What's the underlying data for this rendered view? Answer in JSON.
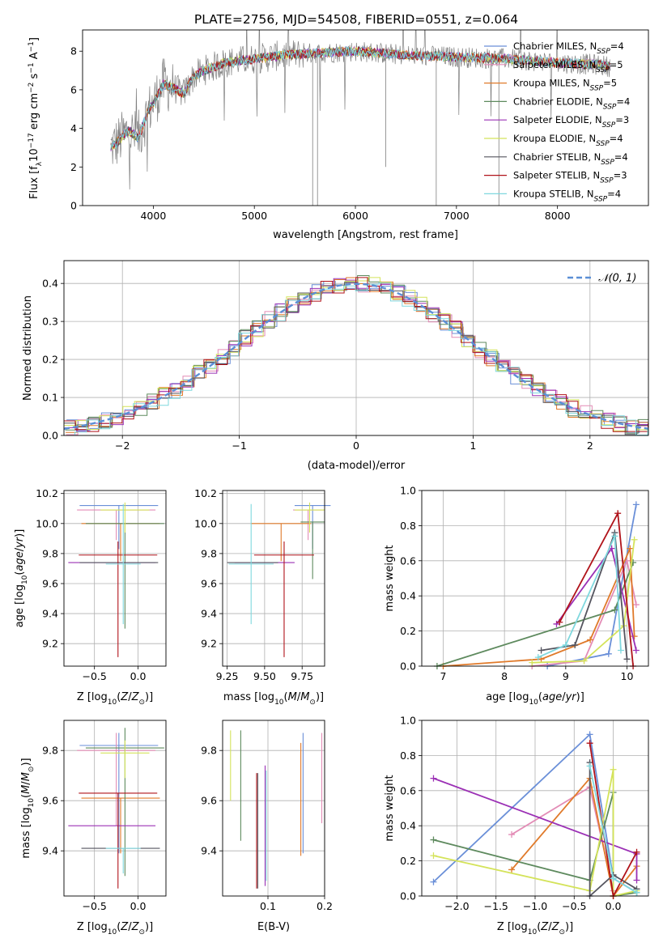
{
  "figure": {
    "title": "PLATE=2756, MJD=54508, FIBERID=0551, z=0.064"
  },
  "colors": {
    "Chabrier MILES": "#6a8fd8",
    "Salpeter MILES": "#e38cb6",
    "Kroupa MILES": "#e07a2a",
    "Chabrier ELODIE": "#5e8a5e",
    "Salpeter ELODIE": "#9b30b5",
    "Kroupa ELODIE": "#d4e35a",
    "Chabrier STELIB": "#55555f",
    "Salpeter STELIB": "#b0131a",
    "Kroupa STELIB": "#7fd8de",
    "data": "#808080",
    "normal": "#5b8fd6"
  },
  "chart_data": [
    {
      "type": "line",
      "title": "PLATE=2756, MJD=54508, FIBERID=0551, z=0.064",
      "xlabel": "wavelength [Angstrom, rest frame]",
      "ylabel": "Flux [fλ10⁻¹⁷ erg cm⁻² s⁻¹ A⁻¹]",
      "xlim": [
        3300,
        8900
      ],
      "ylim": [
        0,
        9.1
      ],
      "xticks": [
        4000,
        5000,
        6000,
        7000,
        8000
      ],
      "yticks": [
        0,
        2,
        4,
        6,
        8
      ],
      "legend_position": "top-right",
      "legend": [
        "Chabrier MILES, N_SSP=4",
        "Salpeter MILES, N_SSP=5",
        "Kroupa MILES, N_SSP=5",
        "Chabrier ELODIE, N_SSP=4",
        "Salpeter ELODIE, N_SSP=3",
        "Kroupa ELODIE, N_SSP=4",
        "Chabrier STELIB, N_SSP=4",
        "Salpeter STELIB, N_SSP=3",
        "Kroupa STELIB, N_SSP=4"
      ],
      "model_continuum": {
        "x": [
          3580,
          3650,
          3750,
          3850,
          3950,
          4000,
          4100,
          4200,
          4300,
          4400,
          4500,
          4700,
          5000,
          5300,
          5600,
          6000,
          6500,
          7000,
          7500,
          8000,
          8400,
          8520
        ],
        "y": [
          3.0,
          3.3,
          3.9,
          3.5,
          4.9,
          5.3,
          6.3,
          6.1,
          5.8,
          6.7,
          7.0,
          7.4,
          7.6,
          7.8,
          7.9,
          8.0,
          7.8,
          7.7,
          7.6,
          7.4,
          7.3,
          7.2
        ]
      }
    },
    {
      "type": "line",
      "xlabel": "(data-model)/error",
      "ylabel": "Normed distribution",
      "xlim": [
        -2.5,
        2.5
      ],
      "ylim": [
        0,
        0.46
      ],
      "xticks": [
        -2,
        -1,
        0,
        1,
        2
      ],
      "yticks": [
        0.0,
        0.1,
        0.2,
        0.3,
        0.4
      ],
      "legend": [
        "𝒩(0, 1)"
      ],
      "legend_position": "top-right",
      "histogram_bin_width": 0.1
    },
    {
      "type": "scatter",
      "xlabel": "Z [log10(Z/Z⊙)]",
      "ylabel": "age  [log10(age/yr)]",
      "xlim": [
        -0.85,
        0.32
      ],
      "ylim": [
        9.05,
        10.22
      ],
      "xticks": [
        -0.5,
        0.0
      ],
      "yticks": [
        9.2,
        9.4,
        9.6,
        9.8,
        10.0,
        10.2
      ],
      "points": [
        {
          "model": "Chabrier MILES",
          "x": -0.22,
          "xerr": 0.45,
          "y": 10.12,
          "yerr": [
            0.29,
            0.0
          ]
        },
        {
          "model": "Salpeter MILES",
          "x": -0.25,
          "xerr": 0.45,
          "y": 10.09,
          "yerr": [
            0.2,
            0.0
          ]
        },
        {
          "model": "Kroupa MILES",
          "x": -0.2,
          "xerr": 0.45,
          "y": 10.0,
          "yerr": [
            0.25,
            0.0
          ]
        },
        {
          "model": "Chabrier ELODIE",
          "x": -0.15,
          "xerr": 0.45,
          "y": 10.0,
          "yerr": [
            0.7,
            0.0
          ]
        },
        {
          "model": "Salpeter ELODIE",
          "x": -0.3,
          "xerr": 0.5,
          "y": 9.74,
          "yerr": [
            0.0,
            0.0
          ]
        },
        {
          "model": "Kroupa ELODIE",
          "x": -0.15,
          "xerr": 0.28,
          "y": 10.09,
          "yerr": [
            0.15,
            0.05
          ]
        },
        {
          "model": "Chabrier STELIB",
          "x": -0.22,
          "xerr": 0.45,
          "y": 9.74,
          "yerr": [
            0.0,
            0.0
          ]
        },
        {
          "model": "Salpeter STELIB",
          "x": -0.23,
          "xerr": 0.45,
          "y": 9.79,
          "yerr": [
            0.68,
            0.09
          ]
        },
        {
          "model": "Kroupa STELIB",
          "x": -0.17,
          "xerr": 0.2,
          "y": 9.73,
          "yerr": [
            0.4,
            0.4
          ]
        }
      ]
    },
    {
      "type": "scatter",
      "xlabel": "mass [log10(M/M⊙)]",
      "ylabel": "",
      "xlim": [
        9.22,
        9.9
      ],
      "ylim": [
        9.05,
        10.22
      ],
      "xticks": [
        9.25,
        9.5,
        9.75
      ],
      "yticks": [
        9.2,
        9.4,
        9.6,
        9.8,
        10.0,
        10.2
      ],
      "points": [
        {
          "model": "Chabrier MILES",
          "x": 9.82,
          "xerr": 0.12,
          "y": 10.12,
          "yerr": [
            0.29,
            0.0
          ]
        },
        {
          "model": "Salpeter MILES",
          "x": 9.79,
          "xerr": 0.1,
          "y": 10.09,
          "yerr": [
            0.2,
            0.0
          ]
        },
        {
          "model": "Kroupa MILES",
          "x": 9.61,
          "xerr": 0.2,
          "y": 10.0,
          "yerr": [
            0.25,
            0.0
          ]
        },
        {
          "model": "Chabrier ELODIE",
          "x": 9.82,
          "xerr": 0.08,
          "y": 10.01,
          "yerr": [
            0.38,
            0.0
          ]
        },
        {
          "model": "Salpeter ELODIE",
          "x": 9.5,
          "xerr": 0.2,
          "y": 9.74,
          "yerr": [
            0.0,
            0.0
          ]
        },
        {
          "model": "Kroupa ELODIE",
          "x": 9.8,
          "xerr": 0.1,
          "y": 10.09,
          "yerr": [
            0.15,
            0.05
          ]
        },
        {
          "model": "Chabrier STELIB",
          "x": 9.42,
          "xerr": 0.17,
          "y": 9.74,
          "yerr": [
            0.0,
            0.0
          ]
        },
        {
          "model": "Salpeter STELIB",
          "x": 9.63,
          "xerr": 0.2,
          "y": 9.79,
          "yerr": [
            0.68,
            0.09
          ]
        },
        {
          "model": "Kroupa STELIB",
          "x": 9.41,
          "xerr": 0.15,
          "y": 9.73,
          "yerr": [
            0.4,
            0.4
          ]
        }
      ]
    },
    {
      "type": "line",
      "xlabel": "age  [log10(age/yr)]",
      "ylabel": "mass weight",
      "xlim": [
        6.65,
        10.35
      ],
      "ylim": [
        0,
        1.0
      ],
      "xticks": [
        7,
        8,
        9,
        10
      ],
      "yticks": [
        0.0,
        0.2,
        0.4,
        0.6,
        0.8,
        1.0
      ],
      "series": [
        {
          "model": "Chabrier MILES",
          "x": [
            8.7,
            9.7,
            10.15
          ],
          "y": [
            0.0,
            0.07,
            0.92
          ]
        },
        {
          "model": "Salpeter MILES",
          "x": [
            8.45,
            9.3,
            10.0,
            10.15
          ],
          "y": [
            0.0,
            0.03,
            0.6,
            0.35
          ]
        },
        {
          "model": "Kroupa MILES",
          "x": [
            7.0,
            8.6,
            9.4,
            10.05,
            10.12
          ],
          "y": [
            0.0,
            0.04,
            0.15,
            0.67,
            0.17
          ]
        },
        {
          "model": "Chabrier ELODIE",
          "x": [
            6.9,
            9.8,
            10.1
          ],
          "y": [
            0.0,
            0.32,
            0.59
          ]
        },
        {
          "model": "Salpeter ELODIE",
          "x": [
            8.85,
            9.75,
            10.15
          ],
          "y": [
            0.24,
            0.67,
            0.09
          ]
        },
        {
          "model": "Kroupa ELODIE",
          "x": [
            8.45,
            9.3,
            9.95,
            10.12
          ],
          "y": [
            0.02,
            0.03,
            0.23,
            0.72
          ]
        },
        {
          "model": "Chabrier STELIB",
          "x": [
            8.6,
            9.15,
            9.8,
            10.0
          ],
          "y": [
            0.09,
            0.12,
            0.76,
            0.04
          ]
        },
        {
          "model": "Salpeter STELIB",
          "x": [
            8.9,
            9.85,
            10.1
          ],
          "y": [
            0.25,
            0.87,
            0.0
          ]
        },
        {
          "model": "Kroupa STELIB",
          "x": [
            8.55,
            9.0,
            9.8,
            9.9
          ],
          "y": [
            0.05,
            0.12,
            0.74,
            0.09
          ]
        }
      ]
    },
    {
      "type": "scatter",
      "xlabel": "Z [log10(Z/Z⊙)]",
      "ylabel": "mass [log10(M/M⊙)]",
      "xlim": [
        -0.85,
        0.32
      ],
      "ylim": [
        9.22,
        9.92
      ],
      "xticks": [
        -0.5,
        0.0
      ],
      "yticks": [
        9.4,
        9.6,
        9.8
      ],
      "points": [
        {
          "model": "Chabrier MILES",
          "x": -0.22,
          "xerr": 0.45,
          "y": 9.82,
          "yerr": [
            0.43,
            0.05
          ]
        },
        {
          "model": "Salpeter MILES",
          "x": -0.25,
          "xerr": 0.45,
          "y": 9.8,
          "yerr": [
            0.3,
            0.07
          ]
        },
        {
          "model": "Kroupa MILES",
          "x": -0.2,
          "xerr": 0.45,
          "y": 9.61,
          "yerr": [
            0.22,
            0.0
          ]
        },
        {
          "model": "Chabrier ELODIE",
          "x": -0.15,
          "xerr": 0.45,
          "y": 9.81,
          "yerr": [
            0.51,
            0.08
          ]
        },
        {
          "model": "Salpeter ELODIE",
          "x": -0.3,
          "xerr": 0.5,
          "y": 9.5,
          "yerr": [
            0.0,
            0.0
          ]
        },
        {
          "model": "Kroupa ELODIE",
          "x": -0.15,
          "xerr": 0.28,
          "y": 9.79,
          "yerr": [
            0.1,
            0.05
          ]
        },
        {
          "model": "Chabrier STELIB",
          "x": -0.2,
          "xerr": 0.45,
          "y": 9.41,
          "yerr": [
            0.0,
            0.0
          ]
        },
        {
          "model": "Salpeter STELIB",
          "x": -0.23,
          "xerr": 0.45,
          "y": 9.63,
          "yerr": [
            0.38,
            0.0
          ]
        },
        {
          "model": "Kroupa STELIB",
          "x": -0.17,
          "xerr": 0.2,
          "y": 9.41,
          "yerr": [
            0.1,
            0.0
          ]
        }
      ]
    },
    {
      "type": "scatter",
      "xlabel": "E(B-V)",
      "ylabel": "",
      "xlim": [
        0.02,
        0.2
      ],
      "ylim": [
        9.22,
        9.92
      ],
      "xticks": [
        0.1,
        0.2
      ],
      "yticks": [
        9.4,
        9.6,
        9.8
      ],
      "points": [
        {
          "model": "Chabrier MILES",
          "x": 0.162,
          "y": 9.62,
          "yerr": [
            0.23,
            0.25
          ]
        },
        {
          "model": "Salpeter MILES",
          "x": 0.195,
          "y": 9.69,
          "yerr": [
            0.18,
            0.18
          ]
        },
        {
          "model": "Kroupa MILES",
          "x": 0.158,
          "y": 9.61,
          "yerr": [
            0.23,
            0.22
          ]
        },
        {
          "model": "Chabrier ELODIE",
          "x": 0.052,
          "y": 9.66,
          "yerr": [
            0.22,
            0.22
          ]
        },
        {
          "model": "Salpeter ELODIE",
          "x": 0.095,
          "y": 9.5,
          "yerr": [
            0.24,
            0.24
          ]
        },
        {
          "model": "Kroupa ELODIE",
          "x": 0.034,
          "y": 9.74,
          "yerr": [
            0.14,
            0.14
          ]
        },
        {
          "model": "Chabrier STELIB",
          "x": 0.082,
          "y": 9.48,
          "yerr": [
            0.23,
            0.23
          ]
        },
        {
          "model": "Salpeter STELIB",
          "x": 0.08,
          "y": 9.48,
          "yerr": [
            0.23,
            0.23
          ]
        },
        {
          "model": "Kroupa STELIB",
          "x": 0.097,
          "y": 9.5,
          "yerr": [
            0.22,
            0.22
          ]
        }
      ]
    },
    {
      "type": "line",
      "xlabel": "Z [log10(Z/Z⊙)]",
      "ylabel": "mass weight",
      "xlim": [
        -2.45,
        0.45
      ],
      "ylim": [
        0,
        1.0
      ],
      "xticks": [
        -2.0,
        -1.5,
        -1.0,
        -0.5,
        0.0
      ],
      "yticks": [
        0.0,
        0.2,
        0.4,
        0.6,
        0.8,
        1.0
      ],
      "series": [
        {
          "model": "Chabrier MILES",
          "x": [
            -2.3,
            -0.3,
            0.0,
            0.3
          ],
          "y": [
            0.08,
            0.92,
            0.1,
            0.02
          ]
        },
        {
          "model": "Salpeter MILES",
          "x": [
            -1.3,
            -0.3,
            0.0
          ],
          "y": [
            0.35,
            0.62,
            0.03
          ]
        },
        {
          "model": "Kroupa MILES",
          "x": [
            -1.3,
            -0.3,
            0.0,
            0.3
          ],
          "y": [
            0.15,
            0.67,
            0.0,
            0.17
          ]
        },
        {
          "model": "Chabrier ELODIE",
          "x": [
            -2.3,
            -0.3,
            0.0,
            0.0,
            0.3
          ],
          "y": [
            0.32,
            0.09,
            0.59,
            0.0,
            0.02
          ]
        },
        {
          "model": "Salpeter ELODIE",
          "x": [
            -2.3,
            0.3,
            0.3
          ],
          "y": [
            0.67,
            0.24,
            0.09
          ]
        },
        {
          "model": "Kroupa ELODIE",
          "x": [
            -2.3,
            -0.3,
            0.0,
            0.0,
            0.3
          ],
          "y": [
            0.23,
            0.03,
            0.72,
            0.0,
            0.03
          ]
        },
        {
          "model": "Chabrier STELIB",
          "x": [
            -0.3,
            -0.3,
            0.0,
            0.3
          ],
          "y": [
            0.76,
            0.0,
            0.12,
            0.04
          ]
        },
        {
          "model": "Salpeter STELIB",
          "x": [
            -0.3,
            0.0,
            0.3
          ],
          "y": [
            0.87,
            0.0,
            0.25
          ]
        },
        {
          "model": "Kroupa STELIB",
          "x": [
            -0.3,
            0.0,
            0.3
          ],
          "y": [
            0.74,
            0.1,
            0.02
          ]
        }
      ]
    }
  ]
}
